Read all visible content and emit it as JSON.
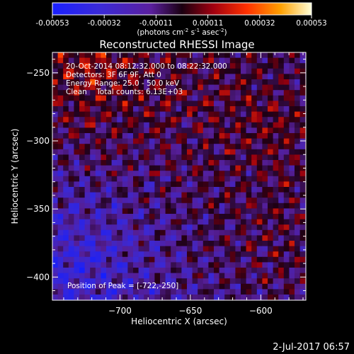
{
  "chart_data": {
    "type": "heatmap",
    "title": "Reconstructed RHESSI Image",
    "xlabel": "Heliocentric X (arcsec)",
    "ylabel": "Heliocentric Y (arcsec)",
    "xlim": [
      -748,
      -568
    ],
    "ylim": [
      -417,
      -235
    ],
    "x_ticks": [
      -700,
      -650,
      -600
    ],
    "y_ticks": [
      -250,
      -300,
      -350,
      -400
    ],
    "colorbar": {
      "min": -0.00053,
      "max": 0.00053,
      "ticks": [
        "-0.00053",
        "-0.00032",
        "-0.00011",
        "0.00011",
        "0.00032",
        "0.00053"
      ],
      "unit_label_parts": [
        "(photons cm",
        "-2",
        " s",
        "-1",
        " asec",
        "-2",
        ")"
      ]
    },
    "annotations": {
      "time_range": "20-Oct-2014 08:12:32.000 to 08:22:32.000",
      "detectors": "Detectors: 3F 6F 9F, Att 0",
      "energy": "Energy Range: 25.0 - 50.0 keV",
      "clean": "Clean    Total counts: 6.13E+03",
      "peak": "Position of Peak = [-722,-250]"
    },
    "peak_position": [
      -722,
      -250
    ],
    "total_counts": "6.13E+03",
    "grid": false
  },
  "footer": {
    "date": "2-Jul-2017 06:57"
  }
}
